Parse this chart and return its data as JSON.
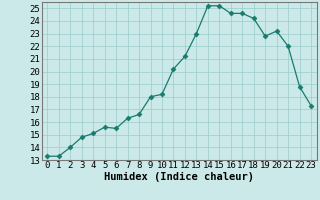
{
  "x": [
    0,
    1,
    2,
    3,
    4,
    5,
    6,
    7,
    8,
    9,
    10,
    11,
    12,
    13,
    14,
    15,
    16,
    17,
    18,
    19,
    20,
    21,
    22,
    23
  ],
  "y": [
    13.3,
    13.3,
    14.0,
    14.8,
    15.1,
    15.6,
    15.5,
    16.3,
    16.6,
    18.0,
    18.2,
    20.2,
    21.2,
    23.0,
    25.2,
    25.2,
    24.6,
    24.6,
    24.2,
    22.8,
    23.2,
    22.0,
    18.8,
    17.3
  ],
  "line_color": "#1a7a6e",
  "marker": "D",
  "marker_size": 2.5,
  "bg_color": "#cce9e9",
  "grid_color": "#99cccc",
  "xlabel": "Humidex (Indice chaleur)",
  "xlabel_fontsize": 7.5,
  "tick_fontsize": 6.5,
  "ylim": [
    13,
    25.5
  ],
  "xlim": [
    -0.5,
    23.5
  ],
  "yticks": [
    13,
    14,
    15,
    16,
    17,
    18,
    19,
    20,
    21,
    22,
    23,
    24,
    25
  ],
  "xticks": [
    0,
    1,
    2,
    3,
    4,
    5,
    6,
    7,
    8,
    9,
    10,
    11,
    12,
    13,
    14,
    15,
    16,
    17,
    18,
    19,
    20,
    21,
    22,
    23
  ],
  "xtick_labels": [
    "0",
    "1",
    "2",
    "3",
    "4",
    "5",
    "6",
    "7",
    "8",
    "9",
    "10",
    "11",
    "12",
    "13",
    "14",
    "15",
    "16",
    "17",
    "18",
    "19",
    "20",
    "21",
    "22",
    "23"
  ]
}
